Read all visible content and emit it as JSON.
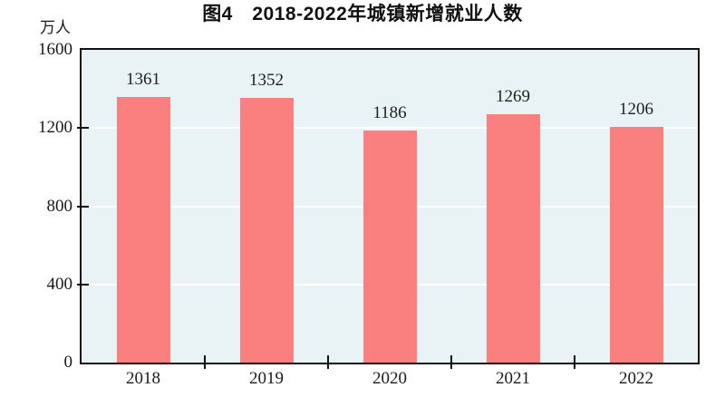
{
  "figure": {
    "title": "图4　2018-2022年城镇新增就业人数",
    "unit_label": "万人"
  },
  "chart_data": {
    "type": "bar",
    "title": "图4　2018-2022年城镇新增就业人数",
    "ylabel": "万人",
    "xlabel": "",
    "categories": [
      "2018",
      "2019",
      "2020",
      "2021",
      "2022"
    ],
    "values": [
      1361,
      1352,
      1186,
      1269,
      1206
    ],
    "ylim": [
      0,
      1600
    ],
    "yticks": [
      0,
      400,
      800,
      1200,
      1600
    ],
    "grid": true,
    "legend": false,
    "colors": {
      "bar": "#fa7f7f",
      "plot_background": "#e9f2f4",
      "gridline": "#ffffff",
      "axis": "#111111",
      "text": "#1a1a1a"
    }
  }
}
